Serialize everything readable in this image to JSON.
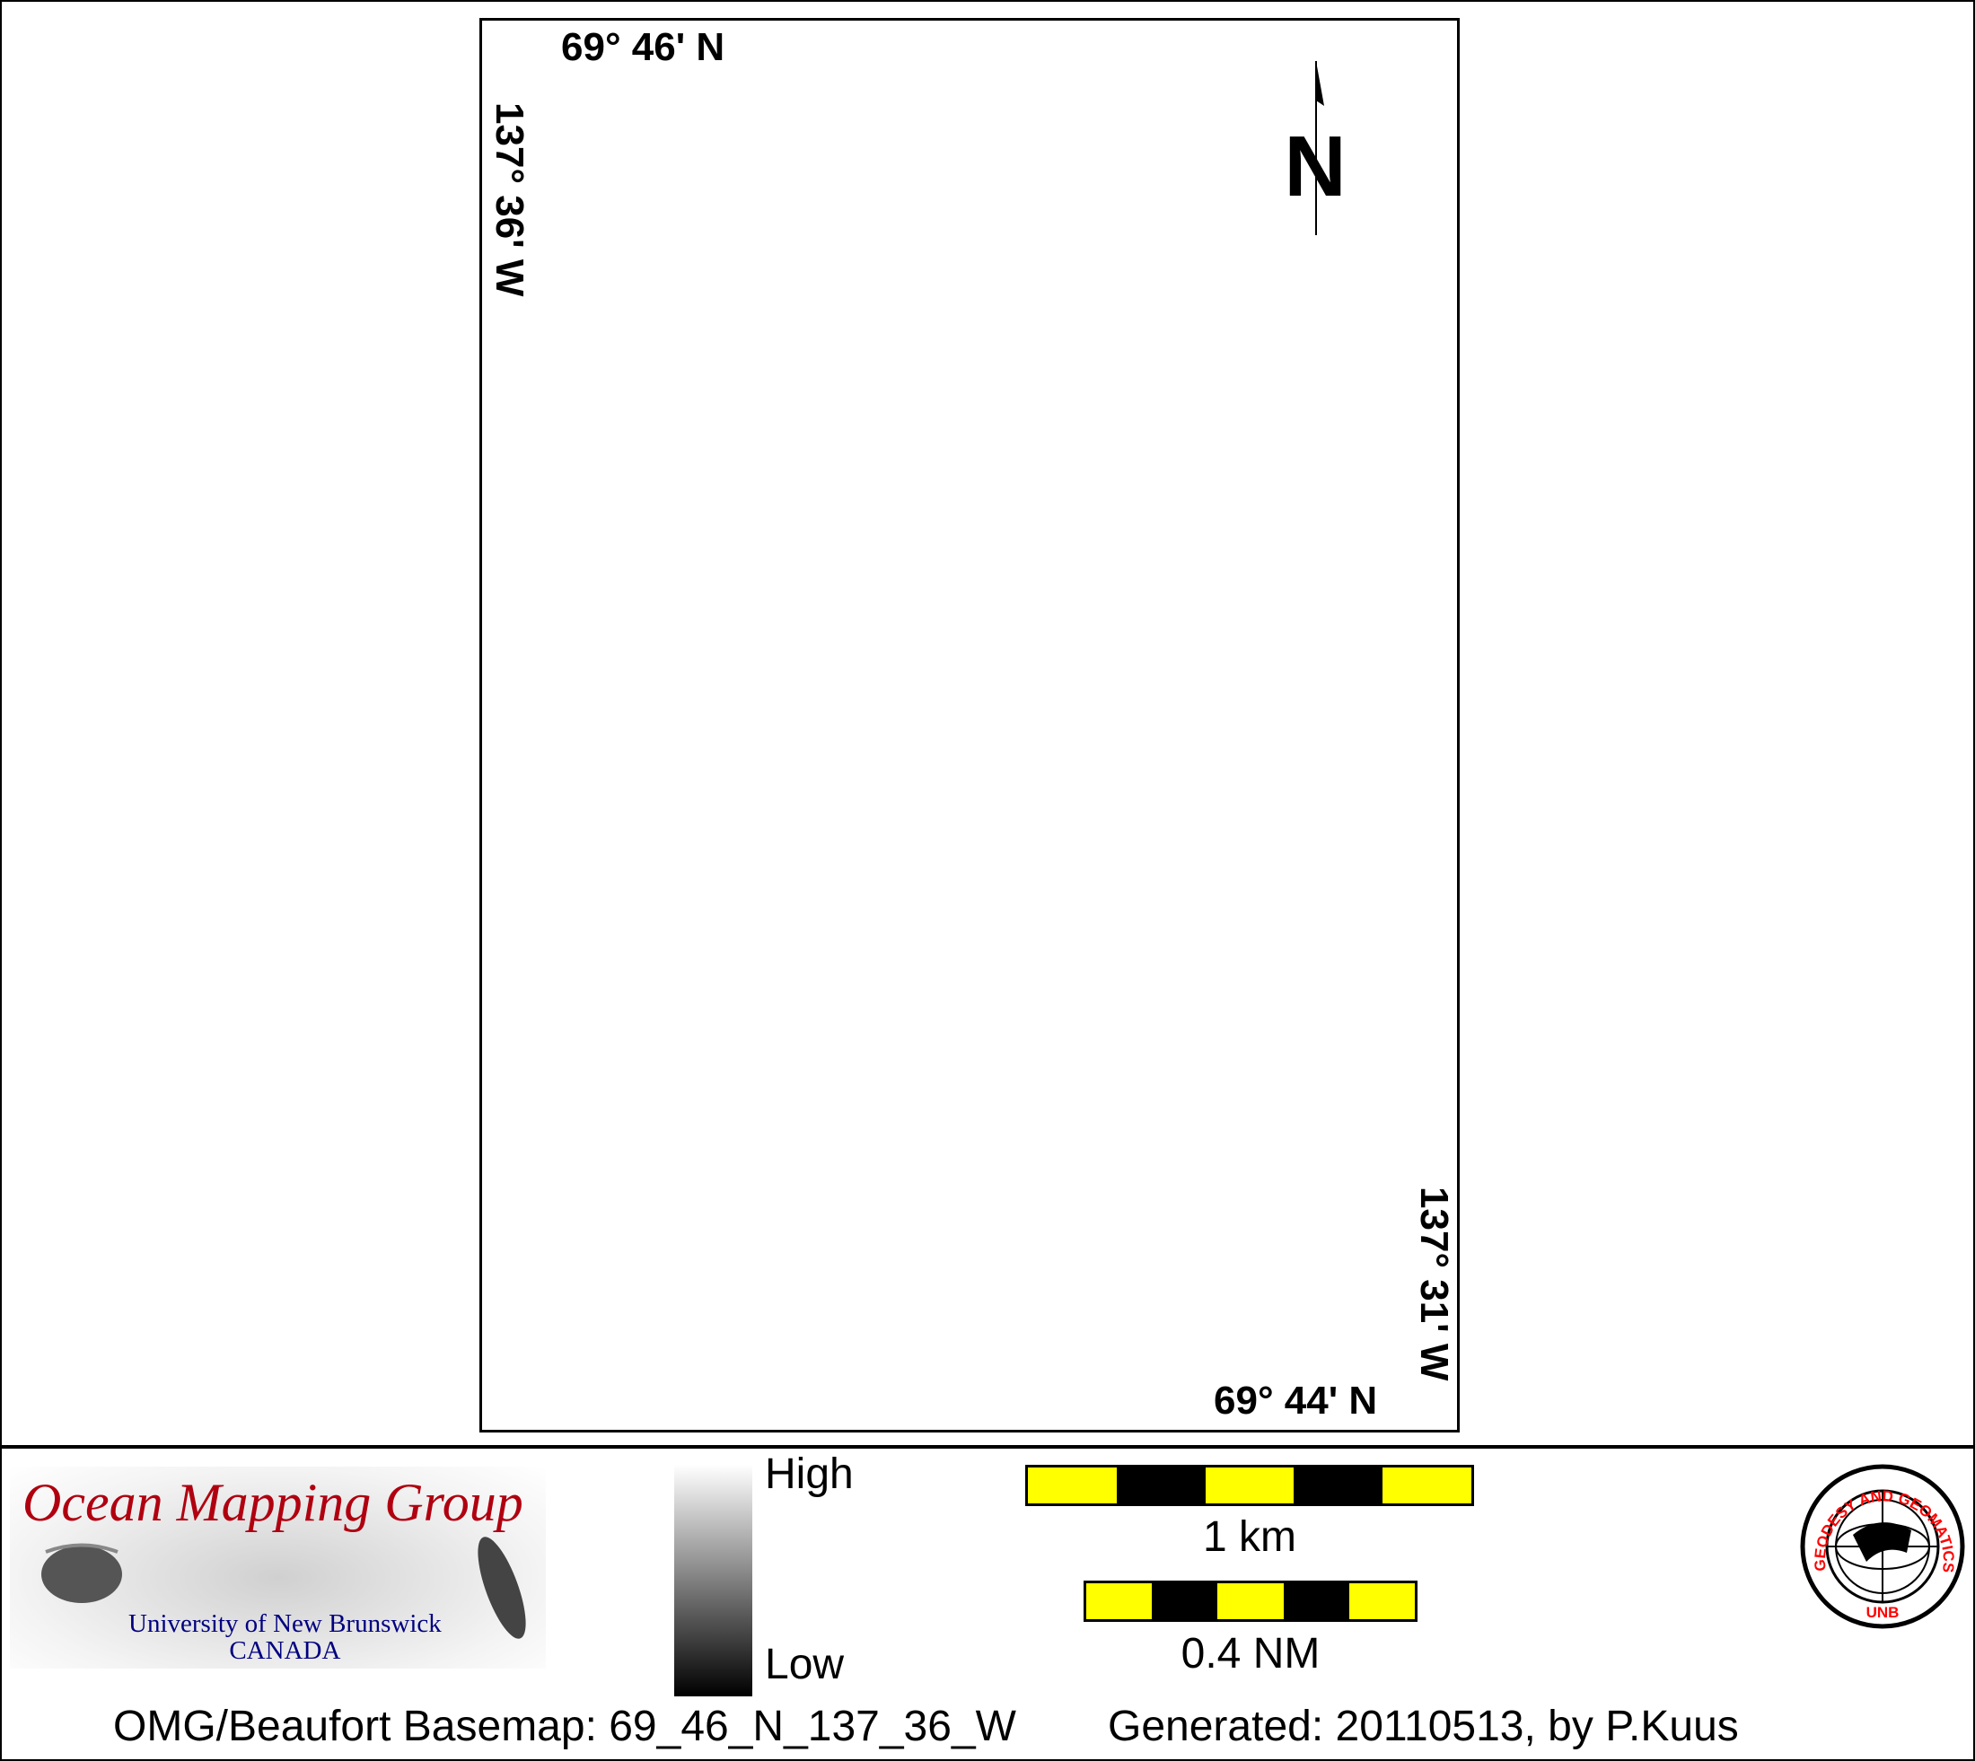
{
  "map": {
    "top_left_lat": "69° 46' N",
    "left_lon": "137° 36' W",
    "bottom_right_lat": "69° 44' N",
    "right_lon": "137° 31' W",
    "north_label": "N"
  },
  "legend": {
    "high_label": "High",
    "low_label": "Low",
    "scale_km_label": "1 km",
    "scale_nm_label": "0.4 NM",
    "scale_colors": [
      "#ffff00",
      "#000000"
    ]
  },
  "logos": {
    "omg_title": "Ocean Mapping Group",
    "omg_university": "University of New Brunswick",
    "omg_country": "CANADA",
    "unb_seal_text": "GEODESY AND GEOMATICS ENGINEERING",
    "unb_seal_bottom": "UNB"
  },
  "footer": {
    "basemap": "OMG/Beaufort Basemap: 69_46_N_137_36_W",
    "generated": "Generated: 20110513, by P.Kuus"
  }
}
